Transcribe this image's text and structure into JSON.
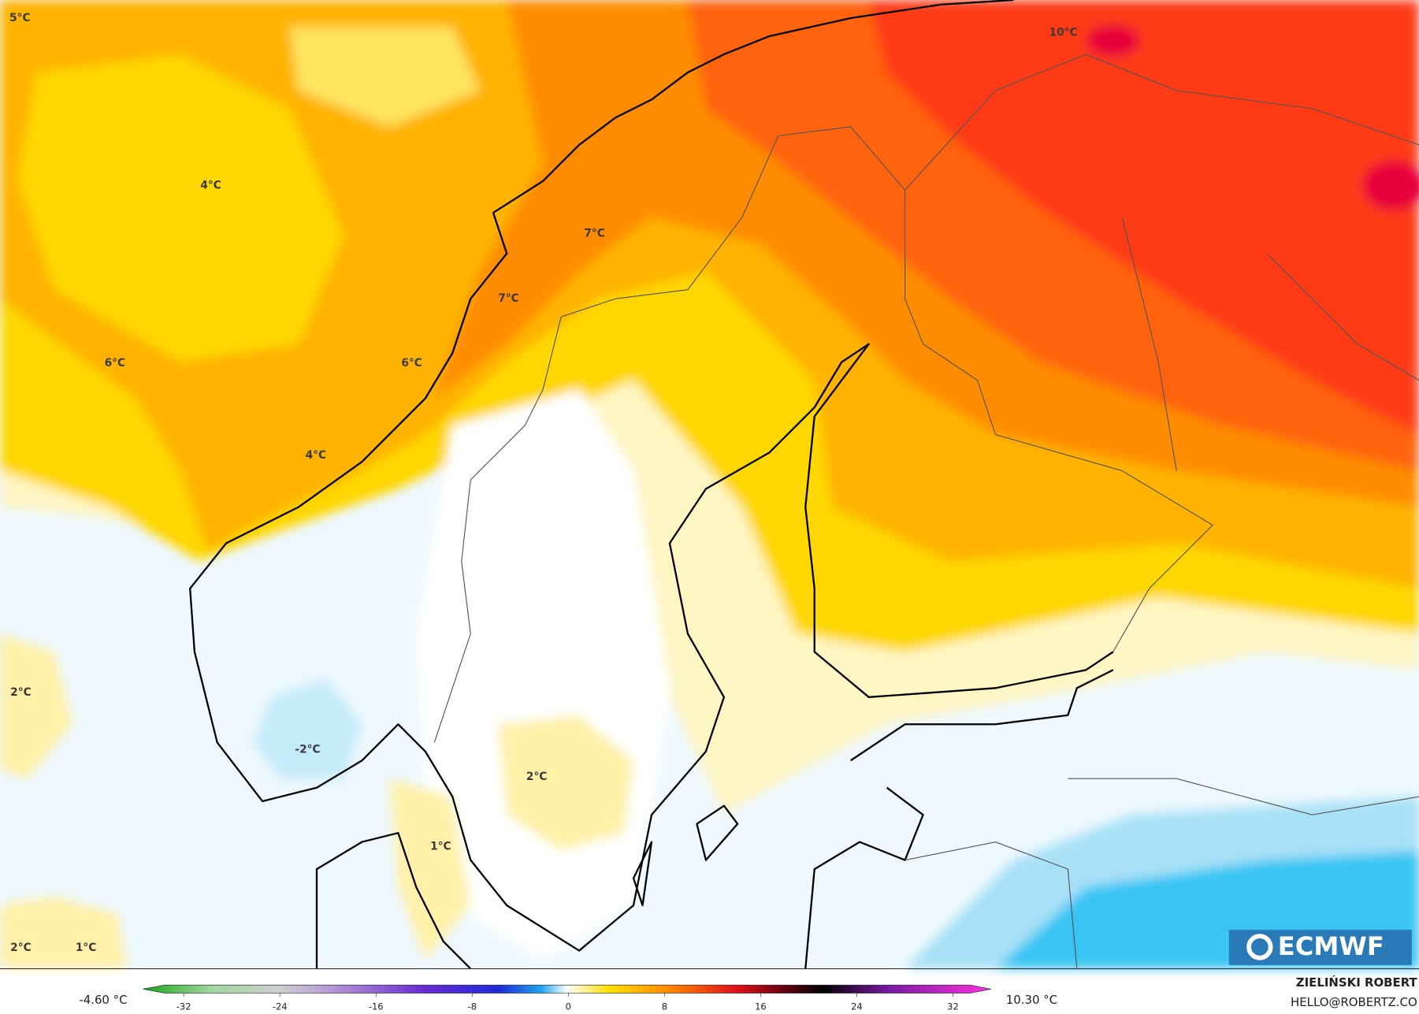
{
  "map": {
    "labels": [
      "5°C",
      "4°C",
      "6°C",
      "6°C",
      "4°C",
      "2°C",
      "-2°C",
      "2°C",
      "1°C",
      "2°C",
      "1°C",
      "10°C",
      "7°C",
      "7°C"
    ]
  },
  "colorbar": {
    "min_label": "-4.60 °C",
    "max_label": "10.30 °C",
    "ticks": [
      -32,
      -24,
      -16,
      -8,
      0,
      8,
      16,
      24,
      32
    ]
  },
  "credit": {
    "author": "ZIELIŃSKI ROBERT",
    "email": "HELLO@ROBERTZ.CO"
  },
  "logo": "ECMWF"
}
